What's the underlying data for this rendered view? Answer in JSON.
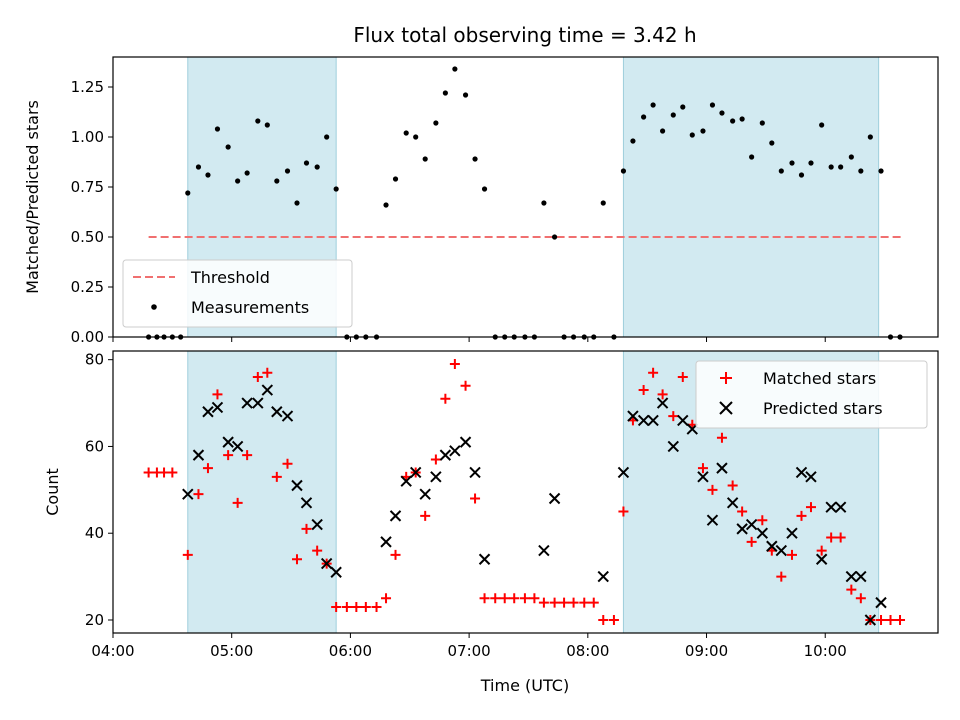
{
  "chart_data": [
    {
      "type": "scatter",
      "title": "Flux total observing time = 3.42 h",
      "xlabel": "",
      "ylabel": "Matched/Predicted stars",
      "x_unit": "hours UTC",
      "xlim": [
        4.0,
        10.95
      ],
      "ylim": [
        0,
        1.4
      ],
      "yticks": [
        "0.00",
        "0.25",
        "0.50",
        "0.75",
        "1.00",
        "1.25"
      ],
      "shaded_intervals": [
        [
          4.63,
          5.88
        ],
        [
          8.3,
          10.45
        ]
      ],
      "threshold": {
        "name": "Threshold",
        "value": 0.5,
        "x_range": [
          4.3,
          10.65
        ],
        "color": "#f07070"
      },
      "series": [
        {
          "name": "Measurements",
          "marker": "dot",
          "color": "#000000",
          "points": [
            [
              4.3,
              0
            ],
            [
              4.37,
              0
            ],
            [
              4.43,
              0
            ],
            [
              4.5,
              0
            ],
            [
              4.57,
              0
            ],
            [
              4.63,
              0.72
            ],
            [
              4.72,
              0.85
            ],
            [
              4.8,
              0.81
            ],
            [
              4.88,
              1.04
            ],
            [
              4.97,
              0.95
            ],
            [
              5.05,
              0.78
            ],
            [
              5.13,
              0.82
            ],
            [
              5.22,
              1.08
            ],
            [
              5.3,
              1.06
            ],
            [
              5.38,
              0.78
            ],
            [
              5.47,
              0.83
            ],
            [
              5.55,
              0.67
            ],
            [
              5.63,
              0.87
            ],
            [
              5.72,
              0.85
            ],
            [
              5.8,
              1.0
            ],
            [
              5.88,
              0.74
            ],
            [
              5.97,
              0
            ],
            [
              6.05,
              0
            ],
            [
              6.13,
              0
            ],
            [
              6.22,
              0
            ],
            [
              6.3,
              0.66
            ],
            [
              6.38,
              0.79
            ],
            [
              6.47,
              1.02
            ],
            [
              6.55,
              1.0
            ],
            [
              6.63,
              0.89
            ],
            [
              6.72,
              1.07
            ],
            [
              6.8,
              1.22
            ],
            [
              6.88,
              1.34
            ],
            [
              6.97,
              1.21
            ],
            [
              7.05,
              0.89
            ],
            [
              7.13,
              0.74
            ],
            [
              7.22,
              0
            ],
            [
              7.3,
              0
            ],
            [
              7.38,
              0
            ],
            [
              7.47,
              0
            ],
            [
              7.55,
              0
            ],
            [
              7.63,
              0.67
            ],
            [
              7.72,
              0.5
            ],
            [
              7.8,
              0
            ],
            [
              7.88,
              0
            ],
            [
              7.97,
              0
            ],
            [
              8.05,
              0
            ],
            [
              8.13,
              0.67
            ],
            [
              8.22,
              0
            ],
            [
              8.3,
              0.83
            ],
            [
              8.38,
              0.98
            ],
            [
              8.47,
              1.1
            ],
            [
              8.55,
              1.16
            ],
            [
              8.63,
              1.03
            ],
            [
              8.72,
              1.11
            ],
            [
              8.8,
              1.15
            ],
            [
              8.88,
              1.01
            ],
            [
              8.97,
              1.03
            ],
            [
              9.05,
              1.16
            ],
            [
              9.13,
              1.12
            ],
            [
              9.22,
              1.08
            ],
            [
              9.3,
              1.09
            ],
            [
              9.38,
              0.9
            ],
            [
              9.47,
              1.07
            ],
            [
              9.55,
              0.97
            ],
            [
              9.63,
              0.83
            ],
            [
              9.72,
              0.87
            ],
            [
              9.8,
              0.81
            ],
            [
              9.88,
              0.87
            ],
            [
              9.97,
              1.06
            ],
            [
              10.05,
              0.85
            ],
            [
              10.13,
              0.85
            ],
            [
              10.22,
              0.9
            ],
            [
              10.3,
              0.83
            ],
            [
              10.38,
              1.0
            ],
            [
              10.47,
              0.83
            ],
            [
              10.55,
              0
            ],
            [
              10.63,
              0
            ]
          ]
        }
      ],
      "legend": {
        "placement": "lower-left",
        "entries": [
          "Threshold",
          "Measurements"
        ]
      },
      "grid": false
    },
    {
      "type": "scatter",
      "title": "",
      "xlabel": "Time (UTC)",
      "ylabel": "Count",
      "xlim": [
        4.0,
        10.95
      ],
      "ylim": [
        17,
        82
      ],
      "yticks": [
        "20",
        "40",
        "60",
        "80"
      ],
      "xticks": [
        {
          "value": 4,
          "label": "04:00"
        },
        {
          "value": 5,
          "label": "05:00"
        },
        {
          "value": 6,
          "label": "06:00"
        },
        {
          "value": 7,
          "label": "07:00"
        },
        {
          "value": 8,
          "label": "08:00"
        },
        {
          "value": 9,
          "label": "09:00"
        },
        {
          "value": 10,
          "label": "10:00"
        }
      ],
      "shaded_intervals": [
        [
          4.63,
          5.88
        ],
        [
          8.3,
          10.45
        ]
      ],
      "series": [
        {
          "name": "Matched stars",
          "marker": "plus",
          "color": "#ff0000",
          "points": [
            [
              4.3,
              54
            ],
            [
              4.37,
              54
            ],
            [
              4.43,
              54
            ],
            [
              4.5,
              54
            ],
            [
              4.63,
              35
            ],
            [
              4.72,
              49
            ],
            [
              4.8,
              55
            ],
            [
              4.88,
              72
            ],
            [
              4.97,
              58
            ],
            [
              5.05,
              47
            ],
            [
              5.13,
              58
            ],
            [
              5.22,
              76
            ],
            [
              5.3,
              77
            ],
            [
              5.38,
              53
            ],
            [
              5.47,
              56
            ],
            [
              5.55,
              34
            ],
            [
              5.63,
              41
            ],
            [
              5.72,
              36
            ],
            [
              5.8,
              33
            ],
            [
              5.88,
              23
            ],
            [
              5.97,
              23
            ],
            [
              6.05,
              23
            ],
            [
              6.13,
              23
            ],
            [
              6.22,
              23
            ],
            [
              6.3,
              25
            ],
            [
              6.38,
              35
            ],
            [
              6.47,
              53
            ],
            [
              6.55,
              54
            ],
            [
              6.63,
              44
            ],
            [
              6.72,
              57
            ],
            [
              6.8,
              71
            ],
            [
              6.88,
              79
            ],
            [
              6.97,
              74
            ],
            [
              7.05,
              48
            ],
            [
              7.13,
              25
            ],
            [
              7.22,
              25
            ],
            [
              7.3,
              25
            ],
            [
              7.38,
              25
            ],
            [
              7.47,
              25
            ],
            [
              7.55,
              25
            ],
            [
              7.63,
              24
            ],
            [
              7.72,
              24
            ],
            [
              7.8,
              24
            ],
            [
              7.88,
              24
            ],
            [
              7.97,
              24
            ],
            [
              8.05,
              24
            ],
            [
              8.13,
              20
            ],
            [
              8.22,
              20
            ],
            [
              8.3,
              45
            ],
            [
              8.38,
              66
            ],
            [
              8.47,
              73
            ],
            [
              8.55,
              77
            ],
            [
              8.63,
              72
            ],
            [
              8.72,
              67
            ],
            [
              8.8,
              76
            ],
            [
              8.88,
              65
            ],
            [
              8.97,
              55
            ],
            [
              9.05,
              50
            ],
            [
              9.13,
              62
            ],
            [
              9.22,
              51
            ],
            [
              9.3,
              45
            ],
            [
              9.38,
              38
            ],
            [
              9.47,
              43
            ],
            [
              9.55,
              36
            ],
            [
              9.63,
              30
            ],
            [
              9.72,
              35
            ],
            [
              9.8,
              44
            ],
            [
              9.88,
              46
            ],
            [
              9.97,
              36
            ],
            [
              10.05,
              39
            ],
            [
              10.13,
              39
            ],
            [
              10.22,
              27
            ],
            [
              10.3,
              25
            ],
            [
              10.38,
              20
            ],
            [
              10.47,
              20
            ],
            [
              10.55,
              20
            ],
            [
              10.63,
              20
            ]
          ]
        },
        {
          "name": "Predicted stars",
          "marker": "x",
          "color": "#000000",
          "points": [
            [
              4.63,
              49
            ],
            [
              4.72,
              58
            ],
            [
              4.8,
              68
            ],
            [
              4.88,
              69
            ],
            [
              4.97,
              61
            ],
            [
              5.05,
              60
            ],
            [
              5.13,
              70
            ],
            [
              5.22,
              70
            ],
            [
              5.3,
              73
            ],
            [
              5.38,
              68
            ],
            [
              5.47,
              67
            ],
            [
              5.55,
              51
            ],
            [
              5.63,
              47
            ],
            [
              5.72,
              42
            ],
            [
              5.8,
              33
            ],
            [
              5.88,
              31
            ],
            [
              6.3,
              38
            ],
            [
              6.38,
              44
            ],
            [
              6.47,
              52
            ],
            [
              6.55,
              54
            ],
            [
              6.63,
              49
            ],
            [
              6.72,
              53
            ],
            [
              6.8,
              58
            ],
            [
              6.88,
              59
            ],
            [
              6.97,
              61
            ],
            [
              7.05,
              54
            ],
            [
              7.13,
              34
            ],
            [
              7.63,
              36
            ],
            [
              7.72,
              48
            ],
            [
              8.13,
              30
            ],
            [
              8.3,
              54
            ],
            [
              8.38,
              67
            ],
            [
              8.47,
              66
            ],
            [
              8.55,
              66
            ],
            [
              8.63,
              70
            ],
            [
              8.72,
              60
            ],
            [
              8.8,
              66
            ],
            [
              8.88,
              64
            ],
            [
              8.97,
              53
            ],
            [
              9.05,
              43
            ],
            [
              9.13,
              55
            ],
            [
              9.22,
              47
            ],
            [
              9.3,
              41
            ],
            [
              9.38,
              42
            ],
            [
              9.47,
              40
            ],
            [
              9.55,
              37
            ],
            [
              9.63,
              36
            ],
            [
              9.72,
              40
            ],
            [
              9.8,
              54
            ],
            [
              9.88,
              53
            ],
            [
              9.97,
              34
            ],
            [
              10.05,
              46
            ],
            [
              10.13,
              46
            ],
            [
              10.22,
              30
            ],
            [
              10.3,
              30
            ],
            [
              10.38,
              20
            ],
            [
              10.47,
              24
            ]
          ]
        }
      ],
      "legend": {
        "placement": "top-right",
        "entries": [
          "Matched stars",
          "Predicted stars"
        ]
      },
      "grid": false
    }
  ]
}
